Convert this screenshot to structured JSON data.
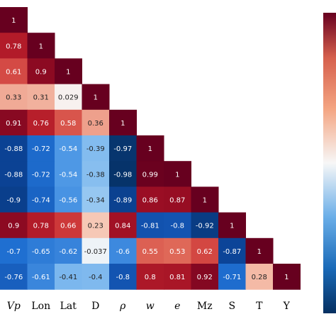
{
  "chart_data": {
    "type": "heatmap",
    "title": "",
    "variables": [
      "Vp",
      "Lon",
      "Lat",
      "D",
      "ρ",
      "w",
      "e",
      "Mz",
      "S",
      "T",
      "Y"
    ],
    "matrix": [
      [
        1
      ],
      [
        0.78,
        1
      ],
      [
        0.61,
        0.9,
        1
      ],
      [
        0.33,
        0.31,
        0.029,
        1
      ],
      [
        0.91,
        0.76,
        0.58,
        0.36,
        1
      ],
      [
        -0.88,
        -0.72,
        -0.54,
        -0.39,
        -0.97,
        1
      ],
      [
        -0.88,
        -0.72,
        -0.54,
        -0.38,
        -0.98,
        0.99,
        1
      ],
      [
        -0.9,
        -0.74,
        -0.56,
        -0.34,
        -0.89,
        0.86,
        0.87,
        1
      ],
      [
        0.9,
        0.78,
        0.66,
        0.23,
        0.84,
        -0.81,
        -0.8,
        -0.92,
        1
      ],
      [
        -0.7,
        -0.65,
        -0.62,
        -0.037,
        -0.6,
        0.55,
        0.53,
        0.62,
        -0.87,
        1
      ],
      [
        -0.76,
        -0.61,
        -0.41,
        -0.4,
        -0.8,
        0.8,
        0.81,
        0.92,
        -0.71,
        0.28,
        1
      ]
    ],
    "colormap": {
      "neg": "#053061",
      "mid": "#f7f7f7",
      "pos": "#67001f"
    },
    "value_range": [
      -1,
      1
    ],
    "colorbar": "right, partially visible"
  }
}
